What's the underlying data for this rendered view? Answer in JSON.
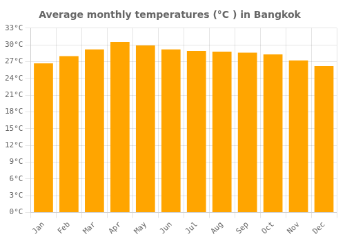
{
  "chart_data": {
    "type": "bar",
    "title": "Average monthly temperatures (°C ) in Bangkok",
    "categories": [
      "Jan",
      "Feb",
      "Mar",
      "Apr",
      "May",
      "Jun",
      "Jul",
      "Aug",
      "Sep",
      "Oct",
      "Nov",
      "Dec"
    ],
    "values": [
      26.7,
      28.0,
      29.2,
      30.5,
      29.9,
      29.2,
      28.9,
      28.8,
      28.6,
      28.3,
      27.2,
      26.2
    ],
    "color": "#FFA500",
    "ylim": [
      0,
      33
    ],
    "yticks": [
      {
        "value": 0,
        "label": "0°C"
      },
      {
        "value": 3,
        "label": "3°C"
      },
      {
        "value": 6,
        "label": "6°C"
      },
      {
        "value": 9,
        "label": "9°C"
      },
      {
        "value": 12,
        "label": "12°C"
      },
      {
        "value": 15,
        "label": "15°C"
      },
      {
        "value": 18,
        "label": "18°C"
      },
      {
        "value": 21,
        "label": "21°C"
      },
      {
        "value": 24,
        "label": "24°C"
      },
      {
        "value": 27,
        "label": "27°C"
      },
      {
        "value": 30,
        "label": "30°C"
      },
      {
        "value": 33,
        "label": "33°C"
      }
    ],
    "grid": true
  }
}
